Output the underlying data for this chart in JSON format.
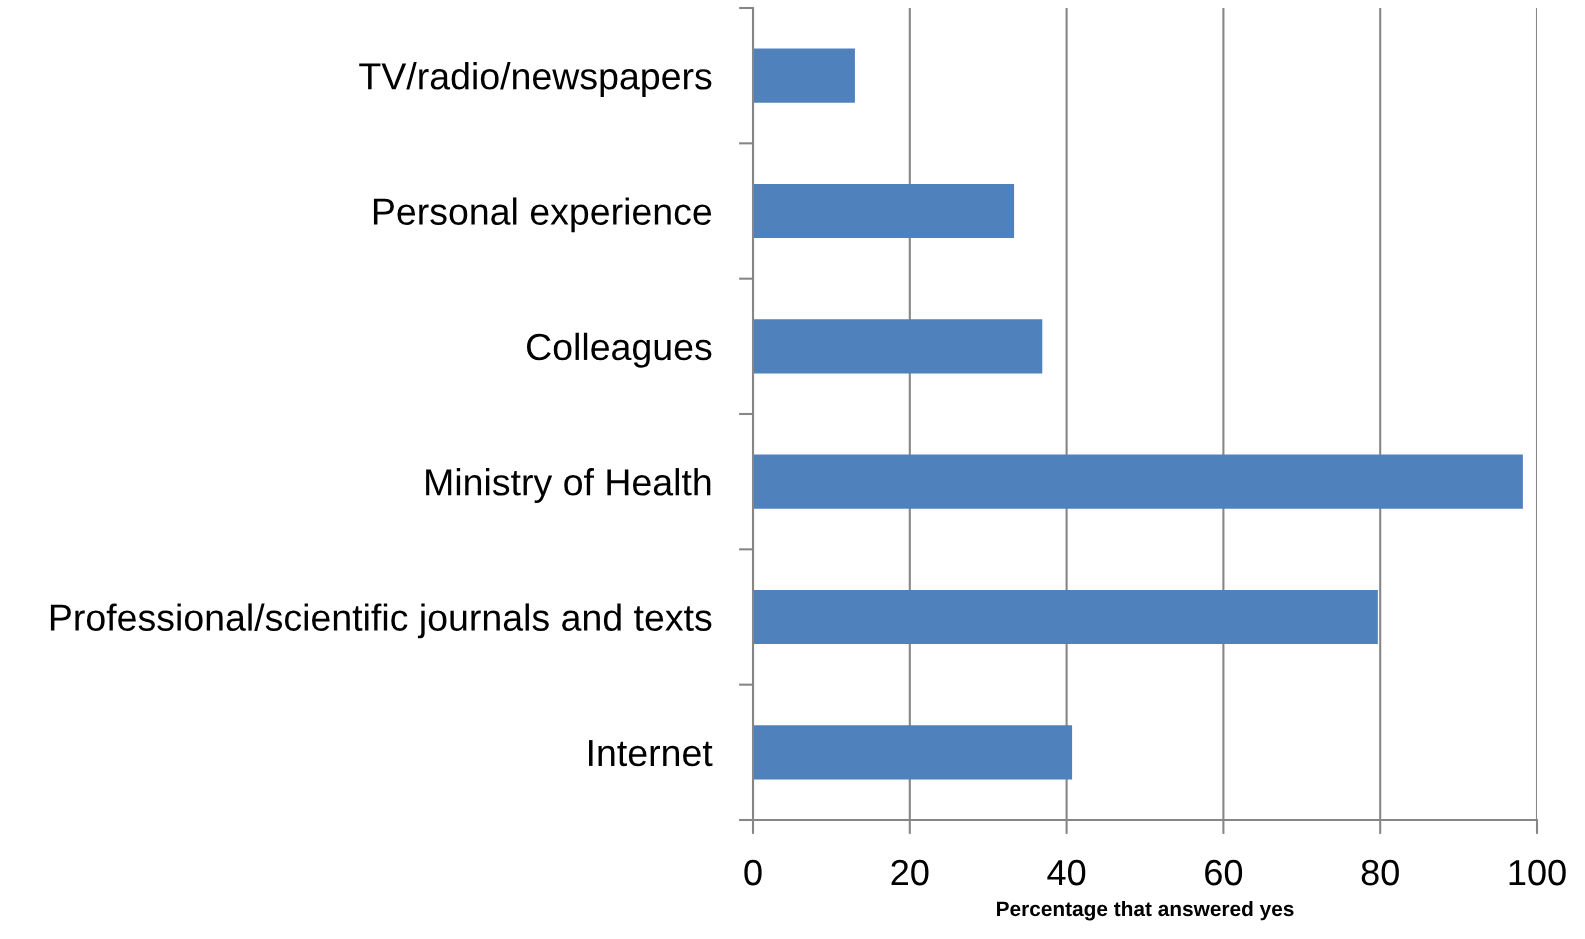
{
  "chart_data": {
    "type": "bar",
    "orientation": "horizontal",
    "categories": [
      "TV/radio/newspapers",
      "Personal experience",
      "Colleagues",
      "Ministry of Health",
      "Professional/scientific journals and texts",
      "Internet"
    ],
    "values": [
      13,
      33.3,
      36.9,
      98.2,
      79.7,
      40.7
    ],
    "color": "#4f81bd",
    "xlabel": "Percentage that answered yes",
    "xlim": [
      0,
      100
    ],
    "xticks": [
      0,
      20,
      40,
      60,
      80,
      100
    ],
    "grid": "x"
  }
}
